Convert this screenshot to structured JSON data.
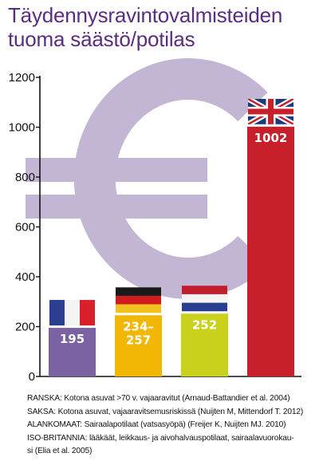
{
  "title_lines": [
    "Täydennysravintovalmisteiden",
    "tuoma säästö/potilas"
  ],
  "chart_data": {
    "type": "bar",
    "title": "Täydennysravintovalmisteiden tuoma säästö/potilas",
    "categories": [
      "Ranska",
      "Saksa",
      "Alankomaat",
      "Iso-Britannia"
    ],
    "values": [
      195,
      245.5,
      252,
      1002
    ],
    "value_labels": [
      "195",
      "234–\n257",
      "252",
      "1002"
    ],
    "bar_colors": [
      "#7b62a3",
      "#f2b705",
      "#c9d11c",
      "#c8202b"
    ],
    "flags": [
      "fr",
      "de",
      "nl",
      "gb"
    ],
    "ylim": [
      0,
      1200
    ],
    "yticks": [
      "0",
      "200",
      "400",
      "600",
      "800",
      "1000",
      "1200"
    ],
    "background_symbol": "euro-sign",
    "background_symbol_color": "#c2b6d4",
    "grid": false,
    "legend": "none"
  },
  "notes": [
    {
      "label": "RANSKA",
      "text": ": Kotona asuvat >70 v. vajaaravitut (Arnaud-Battandier et al. 2004)"
    },
    {
      "label": "SAKSA",
      "text": ": Kotona asuvat, vajaaravitsemusriskissä (Nuijten M, Mittendorf T. 2012)"
    },
    {
      "label": "ALANKOMAAT",
      "text": ": Sairaalapotilaat (vatsasyöpä) (Freijer K, Nuijten MJ. 2010)"
    },
    {
      "label": "ISO-BRITANNIA",
      "text": ": lääkäät, leikkaus- ja aivohalvauspotilaat, sairaalavuorokau-"
    },
    {
      "label": "",
      "text": "si (Elia et al. 2005)"
    }
  ]
}
